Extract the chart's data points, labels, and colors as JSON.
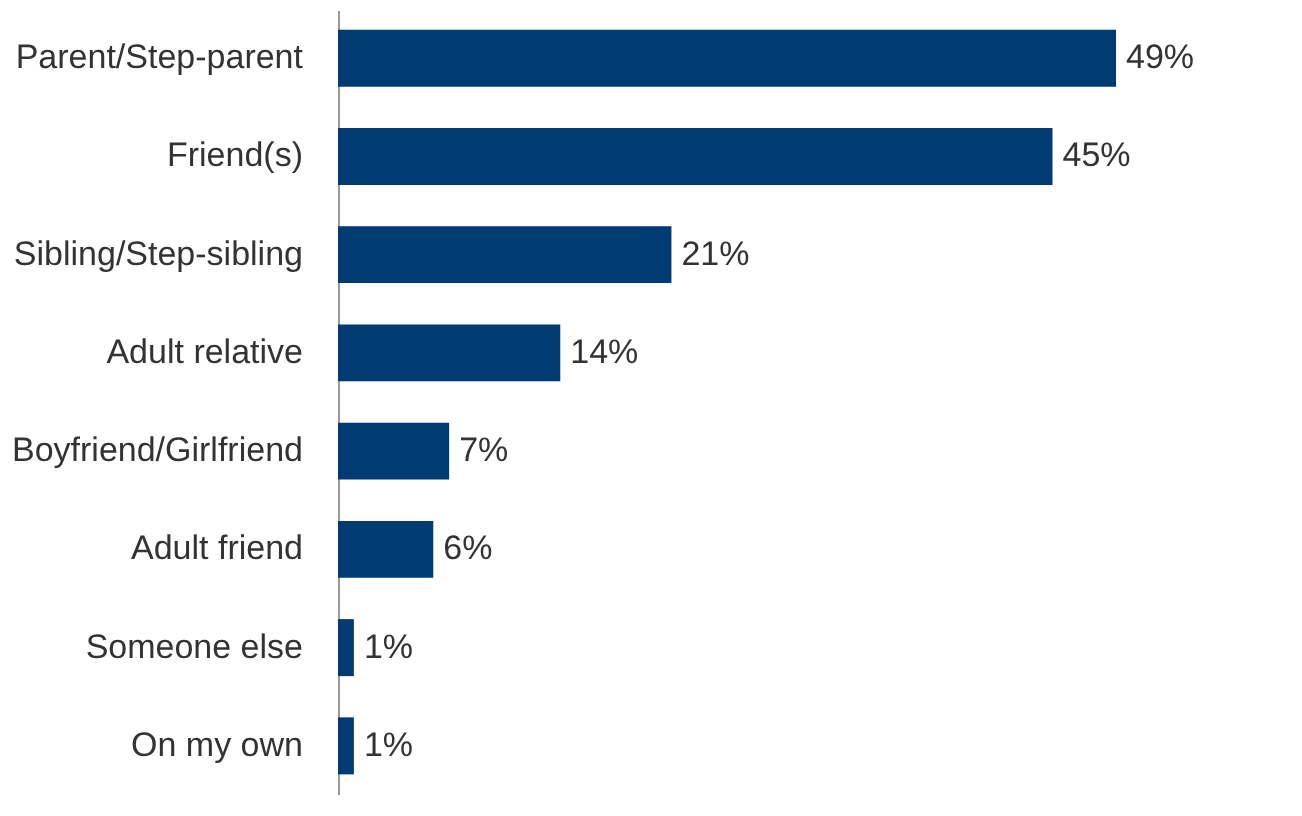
{
  "chart_data": {
    "type": "bar",
    "orientation": "horizontal",
    "categories": [
      "Parent/Step-parent",
      "Friend(s)",
      "Sibling/Step-sibling",
      "Adult relative",
      "Boyfriend/Girlfriend",
      "Adult friend",
      "Someone else",
      "On my own"
    ],
    "values": [
      49,
      45,
      21,
      14,
      7,
      6,
      1,
      1
    ],
    "value_labels": [
      "49%",
      "45%",
      "21%",
      "14%",
      "7%",
      "6%",
      "1%",
      "1%"
    ],
    "color": "#003b71",
    "grid": false
  }
}
